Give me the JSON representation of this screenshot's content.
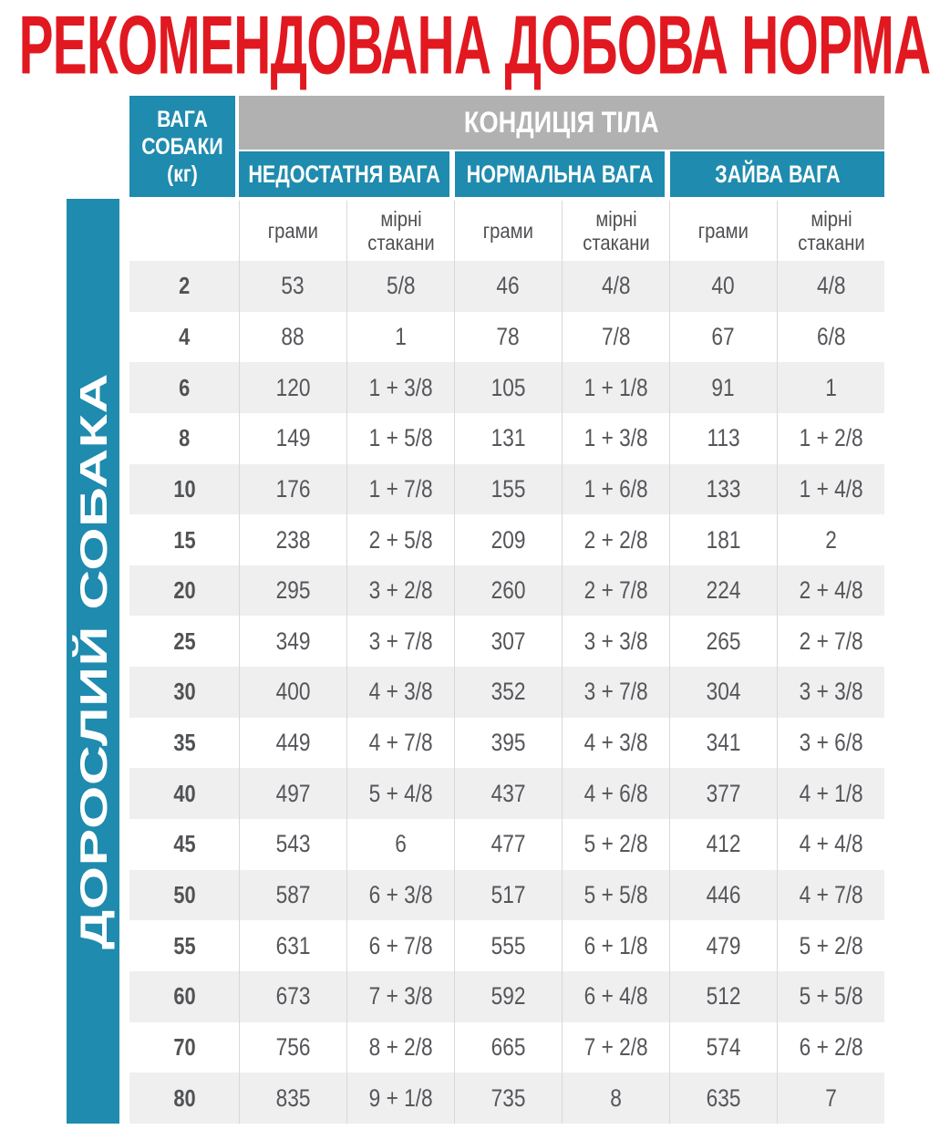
{
  "title": "РЕКОМЕНДОВАНА ДОБОВА НОРМА",
  "side_label": "ДОРОСЛИЙ СОБАКА",
  "colors": {
    "title_red": "#e11820",
    "teal": "#1f8bae",
    "header_gray": "#b1b1b1",
    "row_stripe": "#efeff0",
    "cell_text": "#55565a"
  },
  "table": {
    "weight_header": "ВАГА СОБАКИ (кг)",
    "condition_header": "КОНДИЦІЯ ТІЛА",
    "condition_groups": [
      "НЕДОСТАТНЯ ВАГА",
      "НОРМАЛЬНА ВАГА",
      "ЗАЙВА ВАГА"
    ],
    "unit_headers": [
      "грами",
      "мірні стакани",
      "грами",
      "мірні стакани",
      "грами",
      "мірні стакани"
    ],
    "rows": [
      {
        "weight": "2",
        "values": [
          "53",
          "5/8",
          "46",
          "4/8",
          "40",
          "4/8"
        ]
      },
      {
        "weight": "4",
        "values": [
          "88",
          "1",
          "78",
          "7/8",
          "67",
          "6/8"
        ]
      },
      {
        "weight": "6",
        "values": [
          "120",
          "1 + 3/8",
          "105",
          "1 + 1/8",
          "91",
          "1"
        ]
      },
      {
        "weight": "8",
        "values": [
          "149",
          "1 + 5/8",
          "131",
          "1 + 3/8",
          "113",
          "1 + 2/8"
        ]
      },
      {
        "weight": "10",
        "values": [
          "176",
          "1 + 7/8",
          "155",
          "1 + 6/8",
          "133",
          "1 + 4/8"
        ]
      },
      {
        "weight": "15",
        "values": [
          "238",
          "2 + 5/8",
          "209",
          "2 + 2/8",
          "181",
          "2"
        ]
      },
      {
        "weight": "20",
        "values": [
          "295",
          "3 + 2/8",
          "260",
          "2 + 7/8",
          "224",
          "2 + 4/8"
        ]
      },
      {
        "weight": "25",
        "values": [
          "349",
          "3 + 7/8",
          "307",
          "3 + 3/8",
          "265",
          "2 + 7/8"
        ]
      },
      {
        "weight": "30",
        "values": [
          "400",
          "4 + 3/8",
          "352",
          "3 + 7/8",
          "304",
          "3 + 3/8"
        ]
      },
      {
        "weight": "35",
        "values": [
          "449",
          "4 + 7/8",
          "395",
          "4 + 3/8",
          "341",
          "3 + 6/8"
        ]
      },
      {
        "weight": "40",
        "values": [
          "497",
          "5 + 4/8",
          "437",
          "4 + 6/8",
          "377",
          "4 + 1/8"
        ]
      },
      {
        "weight": "45",
        "values": [
          "543",
          "6",
          "477",
          "5 + 2/8",
          "412",
          "4 + 4/8"
        ]
      },
      {
        "weight": "50",
        "values": [
          "587",
          "6 + 3/8",
          "517",
          "5 + 5/8",
          "446",
          "4 + 7/8"
        ]
      },
      {
        "weight": "55",
        "values": [
          "631",
          "6 + 7/8",
          "555",
          "6 + 1/8",
          "479",
          "5 + 2/8"
        ]
      },
      {
        "weight": "60",
        "values": [
          "673",
          "7 + 3/8",
          "592",
          "6 + 4/8",
          "512",
          "5 + 5/8"
        ]
      },
      {
        "weight": "70",
        "values": [
          "756",
          "8 + 2/8",
          "665",
          "7 + 2/8",
          "574",
          "6 + 2/8"
        ]
      },
      {
        "weight": "80",
        "values": [
          "835",
          "9 + 1/8",
          "735",
          "8",
          "635",
          "7"
        ]
      }
    ]
  }
}
